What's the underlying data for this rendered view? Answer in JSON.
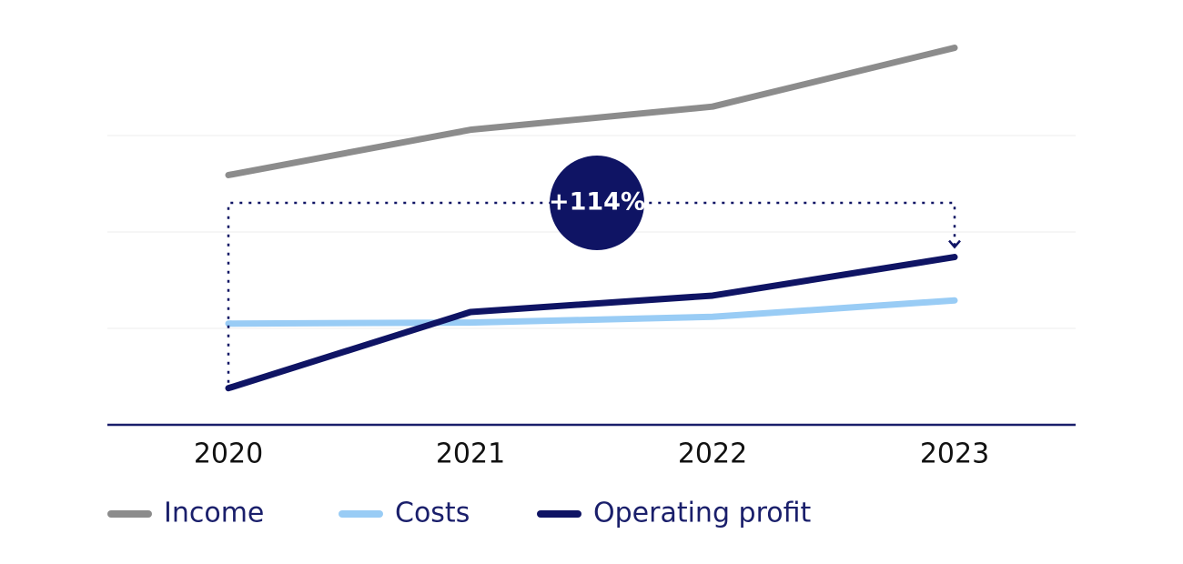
{
  "chart_data": {
    "type": "line",
    "categories": [
      "2020",
      "2021",
      "2022",
      "2023"
    ],
    "series": [
      {
        "name": "Income",
        "color": "#8c8c8c",
        "values": [
          2.59,
          3.06,
          3.3,
          3.91
        ]
      },
      {
        "name": "Costs",
        "color": "#99ccf5",
        "values": [
          1.05,
          1.06,
          1.12,
          1.29
        ]
      },
      {
        "name": "Operating profit",
        "color": "#0f1464",
        "values": [
          0.38,
          1.17,
          1.34,
          1.74
        ]
      }
    ],
    "ylim": [
      0,
      4
    ],
    "yticks": [
      1,
      2,
      3
    ],
    "grid": true,
    "annotation": "+114%"
  }
}
